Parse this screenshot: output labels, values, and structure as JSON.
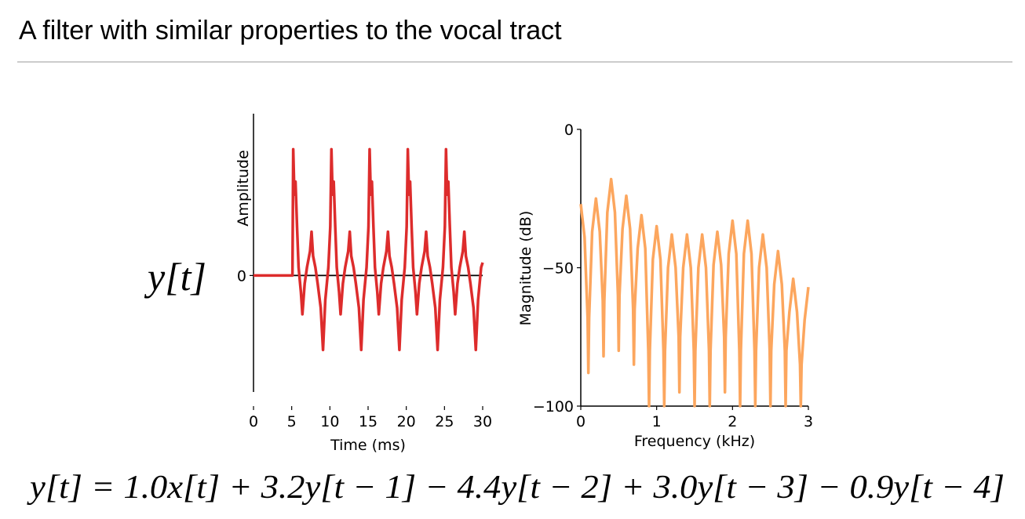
{
  "title": "A filter with similar properties to the vocal tract",
  "signal_label": "y[t]",
  "equation": "y[t] = 1.0x[t] + 3.2y[t − 1] − 4.4y[t − 2] + 3.0y[t − 3] − 0.9y[t − 4]",
  "chart_data": [
    {
      "type": "line",
      "x_label": "Time (ms)",
      "y_label": "Amplitude",
      "x": [
        0,
        5.1,
        5.2,
        5.35,
        5.5,
        5.7,
        5.9,
        6.2,
        6.4,
        6.7,
        7.0,
        7.4,
        7.6,
        7.8,
        8.1,
        8.4,
        8.8,
        9.1,
        9.4,
        9.8,
        10.05,
        10.2,
        10.35,
        10.5,
        10.7,
        10.9,
        11.2,
        11.4,
        11.7,
        12.0,
        12.4,
        12.6,
        12.8,
        13.1,
        13.4,
        13.8,
        14.1,
        14.4,
        14.8,
        15.05,
        15.2,
        15.35,
        15.5,
        15.7,
        15.9,
        16.2,
        16.4,
        16.7,
        17.0,
        17.4,
        17.6,
        17.8,
        18.1,
        18.4,
        18.8,
        19.1,
        19.4,
        19.8,
        20.05,
        20.2,
        20.35,
        20.5,
        20.7,
        20.9,
        21.2,
        21.4,
        21.7,
        22.0,
        22.4,
        22.6,
        22.8,
        23.1,
        23.4,
        23.8,
        24.1,
        24.4,
        24.8,
        25.05,
        25.2,
        25.35,
        25.5,
        25.7,
        25.9,
        26.2,
        26.4,
        26.7,
        27.0,
        27.4,
        27.6,
        27.8,
        28.1,
        28.4,
        28.8,
        29.1,
        29.4,
        29.8,
        30
      ],
      "series": [
        {
          "color": "#dd2c2c",
          "values": [
            0,
            0,
            0.78,
            0.5,
            0.58,
            0.3,
            0.05,
            -0.1,
            -0.24,
            -0.05,
            0.05,
            0.15,
            0.27,
            0.12,
            0.05,
            -0.05,
            -0.2,
            -0.46,
            -0.15,
            0.05,
            0.3,
            0.78,
            0.5,
            0.58,
            0.3,
            0.05,
            -0.1,
            -0.24,
            -0.05,
            0.05,
            0.15,
            0.27,
            0.12,
            0.05,
            -0.05,
            -0.2,
            -0.46,
            -0.15,
            0.05,
            0.3,
            0.78,
            0.5,
            0.58,
            0.3,
            0.05,
            -0.1,
            -0.24,
            -0.05,
            0.05,
            0.15,
            0.27,
            0.12,
            0.05,
            -0.05,
            -0.2,
            -0.46,
            -0.15,
            0.05,
            0.3,
            0.78,
            0.5,
            0.58,
            0.3,
            0.05,
            -0.1,
            -0.24,
            -0.05,
            0.05,
            0.15,
            0.27,
            0.12,
            0.05,
            -0.05,
            -0.2,
            -0.46,
            -0.15,
            0.05,
            0.3,
            0.78,
            0.5,
            0.58,
            0.3,
            0.05,
            -0.1,
            -0.24,
            -0.05,
            0.05,
            0.15,
            0.27,
            0.12,
            0.05,
            -0.05,
            -0.2,
            -0.46,
            -0.15,
            0.05,
            0.08
          ]
        }
      ],
      "xlim": [
        0,
        30
      ],
      "ylim": [
        -0.72,
        1.0
      ],
      "xticks": [
        0,
        5,
        10,
        15,
        20,
        25,
        30
      ],
      "yticks": [
        0
      ],
      "zero_line": true
    },
    {
      "type": "line",
      "x_label": "Frequency (kHz)",
      "y_label": "Magnitude (dB)",
      "x": [
        0,
        0.05,
        0.09,
        0.1,
        0.11,
        0.15,
        0.2,
        0.25,
        0.29,
        0.3,
        0.31,
        0.35,
        0.4,
        0.45,
        0.49,
        0.5,
        0.51,
        0.55,
        0.6,
        0.65,
        0.69,
        0.7,
        0.71,
        0.75,
        0.8,
        0.85,
        0.89,
        0.9,
        0.91,
        0.95,
        1.0,
        1.05,
        1.09,
        1.1,
        1.11,
        1.15,
        1.2,
        1.25,
        1.29,
        1.3,
        1.31,
        1.35,
        1.4,
        1.45,
        1.49,
        1.5,
        1.51,
        1.55,
        1.6,
        1.65,
        1.69,
        1.7,
        1.71,
        1.75,
        1.8,
        1.85,
        1.89,
        1.9,
        1.91,
        1.95,
        2.0,
        2.05,
        2.09,
        2.1,
        2.11,
        2.15,
        2.2,
        2.25,
        2.29,
        2.3,
        2.31,
        2.35,
        2.4,
        2.45,
        2.49,
        2.5,
        2.51,
        2.55,
        2.6,
        2.65,
        2.69,
        2.7,
        2.71,
        2.75,
        2.8,
        2.85,
        2.89,
        2.9,
        2.91,
        2.95,
        3.0
      ],
      "series": [
        {
          "color": "#fca65e",
          "values": [
            -27,
            -39,
            -68,
            -88,
            -68,
            -37,
            -25,
            -37,
            -62,
            -82,
            -62,
            -30,
            -18,
            -30,
            -60,
            -80,
            -60,
            -36,
            -24,
            -36,
            -65,
            -85,
            -65,
            -43,
            -31,
            -43,
            -80,
            -100,
            -80,
            -47,
            -35,
            -47,
            -80,
            -100,
            -80,
            -50,
            -38,
            -50,
            -75,
            -95,
            -75,
            -50,
            -38,
            -50,
            -80,
            -100,
            -80,
            -50,
            -38,
            -50,
            -80,
            -100,
            -80,
            -49,
            -37,
            -49,
            -75,
            -95,
            -75,
            -45,
            -33,
            -45,
            -80,
            -100,
            -80,
            -45,
            -33,
            -45,
            -80,
            -100,
            -80,
            -50,
            -38,
            -50,
            -80,
            -100,
            -80,
            -56,
            -44,
            -56,
            -80,
            -100,
            -80,
            -66,
            -54,
            -66,
            -85,
            -100,
            -85,
            -69,
            -57
          ]
        }
      ],
      "xlim": [
        0,
        3
      ],
      "ylim": [
        -100,
        0
      ],
      "xticks": [
        0,
        1,
        2,
        3
      ],
      "yticks": [
        {
          "value": -100,
          "label": "−100"
        },
        {
          "value": -50,
          "label": "−50"
        },
        0
      ],
      "zero_line": false
    }
  ]
}
